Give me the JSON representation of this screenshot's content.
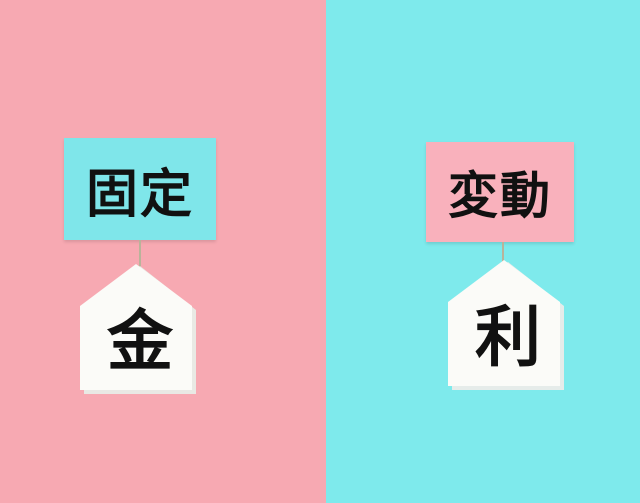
{
  "colors": {
    "left_background": "#f7a9b2",
    "right_background": "#7eeaec",
    "left_card": "#7fe6ea",
    "right_card": "#f9b1bc",
    "block_white": "#fbfbf8"
  },
  "left": {
    "card_text": "固定",
    "block_char": "金"
  },
  "right": {
    "card_text": "変動",
    "block_char": "利"
  }
}
